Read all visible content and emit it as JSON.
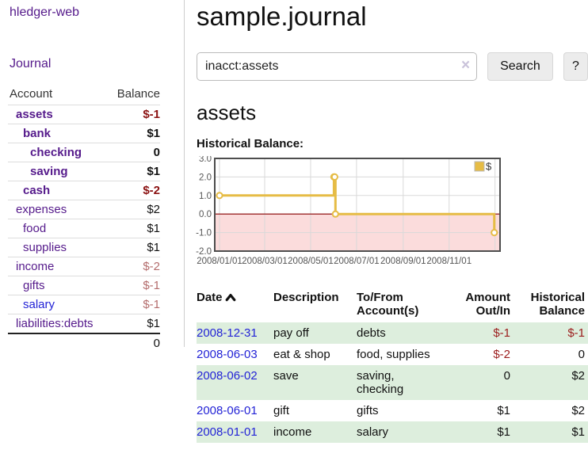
{
  "app": {
    "brand": "hledger-web"
  },
  "sidebar": {
    "journal_link": "Journal",
    "table": {
      "account_header": "Account",
      "balance_header": "Balance",
      "accounts": [
        {
          "name": "assets",
          "indent": 1,
          "bold": true,
          "balance": "$-1",
          "balance_style": "neg-strong",
          "link_color": "purple"
        },
        {
          "name": "bank",
          "indent": 2,
          "bold": true,
          "balance": "$1",
          "balance_style": "",
          "link_color": "purple"
        },
        {
          "name": "checking",
          "indent": 3,
          "bold": true,
          "balance": "0",
          "balance_style": "",
          "link_color": "purple"
        },
        {
          "name": "saving",
          "indent": 3,
          "bold": true,
          "balance": "$1",
          "balance_style": "",
          "link_color": "purple"
        },
        {
          "name": "cash",
          "indent": 2,
          "bold": true,
          "balance": "$-2",
          "balance_style": "neg-strong",
          "link_color": "purple"
        },
        {
          "name": "expenses",
          "indent": 1,
          "bold": false,
          "balance": "$2",
          "balance_style": "",
          "link_color": "purple"
        },
        {
          "name": "food",
          "indent": 2,
          "bold": false,
          "balance": "$1",
          "balance_style": "",
          "link_color": "purple"
        },
        {
          "name": "supplies",
          "indent": 2,
          "bold": false,
          "balance": "$1",
          "balance_style": "",
          "link_color": "purple"
        },
        {
          "name": "income",
          "indent": 1,
          "bold": false,
          "balance": "$-2",
          "balance_style": "neg-faded",
          "link_color": "purple"
        },
        {
          "name": "gifts",
          "indent": 2,
          "bold": false,
          "balance": "$-1",
          "balance_style": "neg-faded",
          "link_color": "purple"
        },
        {
          "name": "salary",
          "indent": 2,
          "bold": false,
          "balance": "$-1",
          "balance_style": "neg-faded",
          "link_color": "blue"
        },
        {
          "name": "liabilities:debts",
          "indent": 1,
          "bold": false,
          "balance": "$1",
          "balance_style": "",
          "link_color": "purple"
        }
      ],
      "total": "0"
    }
  },
  "main": {
    "title": "sample.journal",
    "search": {
      "value": "inacct:assets",
      "clear_icon": "×",
      "button_label": "Search",
      "help_label": "?"
    },
    "account_heading": "assets",
    "chart_label": "Historical Balance:"
  },
  "chart_data": {
    "type": "line",
    "step": true,
    "title": "Historical Balance:",
    "series": [
      {
        "name": "$",
        "points": [
          [
            "2008-01-01",
            1
          ],
          [
            "2008-06-01",
            2
          ],
          [
            "2008-06-02",
            2
          ],
          [
            "2008-06-03",
            0
          ],
          [
            "2008-12-31",
            -1
          ]
        ]
      }
    ],
    "ylim": [
      -2,
      3
    ],
    "yticks": [
      "3.0",
      "2.0",
      "1.0",
      "0.0",
      "-1.0",
      "-2.0"
    ],
    "xticks": [
      {
        "date": "2008/01/01",
        "label": "2008/01/01"
      },
      {
        "date": "2008/03/01",
        "label": "2008/03/01"
      },
      {
        "date": "2008/05/01",
        "label": "2008/05/01"
      },
      {
        "date": "2008/07/01",
        "label": "2008/07/01"
      },
      {
        "date": "2008/09/01",
        "label": "2008/09/01"
      },
      {
        "date": "2008/11/01",
        "label": "2008/11/01"
      },
      {
        "date": "2009/01/01",
        "label": ""
      }
    ],
    "legend": {
      "label": "$",
      "position": "top-right"
    },
    "colors": {
      "line": "#e6bc45",
      "marker_fill": "#ffffff",
      "negative_fill": "#fbdcdc",
      "zero_line": "#8b0000",
      "grid": "#d9d9d9",
      "border": "#4d4d4d",
      "tick_text": "#555555",
      "legend_box_fill": "#e6bc45",
      "legend_box_stroke": "#b9b9b9"
    }
  },
  "register": {
    "headers": {
      "date": "Date",
      "description": "Description",
      "tofrom": "To/From Account(s)",
      "amount": "Amount Out/In",
      "historical": "Historical Balance"
    },
    "rows": [
      {
        "date": "2008-12-31",
        "description": "pay off",
        "accounts": "debts",
        "amount": "$-1",
        "amount_neg": true,
        "historical": "$-1",
        "historical_neg": true
      },
      {
        "date": "2008-06-03",
        "description": "eat & shop",
        "accounts": "food, supplies",
        "amount": "$-2",
        "amount_neg": true,
        "historical": "0",
        "historical_neg": false
      },
      {
        "date": "2008-06-02",
        "description": "save",
        "accounts": "saving, checking",
        "amount": "0",
        "amount_neg": false,
        "historical": "$2",
        "historical_neg": false
      },
      {
        "date": "2008-06-01",
        "description": "gift",
        "accounts": "gifts",
        "amount": "$1",
        "amount_neg": false,
        "historical": "$2",
        "historical_neg": false
      },
      {
        "date": "2008-01-01",
        "description": "income",
        "accounts": "salary",
        "amount": "$1",
        "amount_neg": false,
        "historical": "$1",
        "historical_neg": false
      }
    ]
  },
  "colors": {
    "link_purple": "#551a8b",
    "link_blue": "#2323d6",
    "neg_strong": "#8b1212",
    "neg_faded": "#b46d6d",
    "row_stripe": "#ddeedd"
  }
}
